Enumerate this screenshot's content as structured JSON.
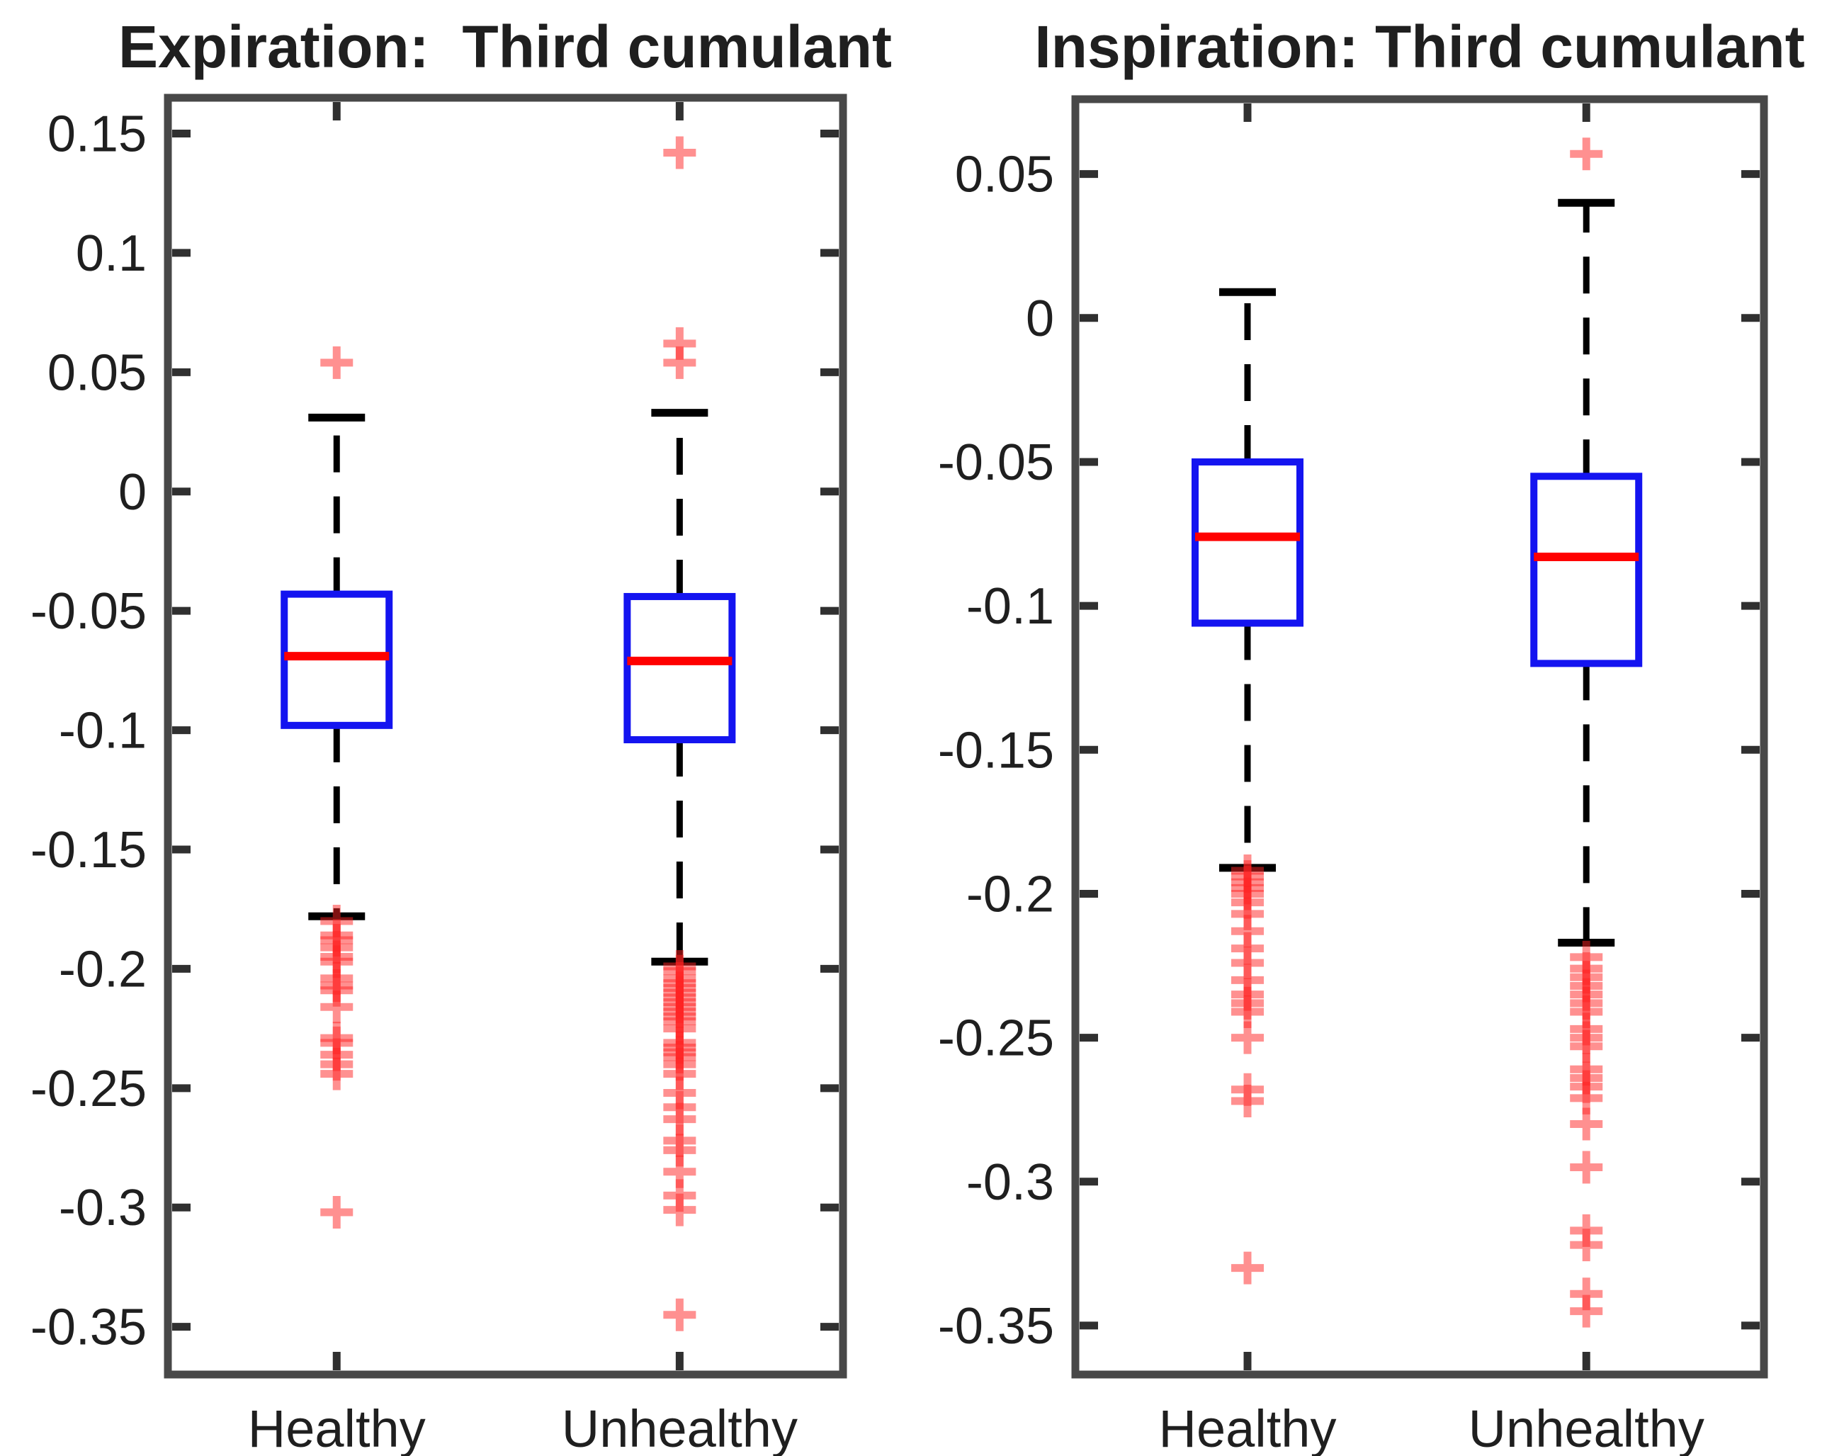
{
  "figure": {
    "background": "#ffffff"
  },
  "colors": {
    "box_stroke": "#1414f0",
    "median": "#ff0000",
    "whisker": "#000000",
    "whisker_cap": "#000000",
    "outlier": "#ff2121",
    "outlier_opacity": 0.5,
    "axis_frame": "#484848",
    "tick": "#303030",
    "text": "#1f1f1f"
  },
  "chart_data": [
    {
      "type": "box",
      "title": "Expiration:  Third cumulant",
      "categories": [
        "Healthy",
        "Unhealthy"
      ],
      "ylim": [
        -0.37,
        0.165
      ],
      "yticks": [
        0.15,
        0.1,
        0.05,
        0,
        -0.05,
        -0.1,
        -0.15,
        -0.2,
        -0.25,
        -0.3,
        -0.35
      ],
      "grid": false,
      "boxes": [
        {
          "category": "Healthy",
          "whisker_low": -0.178,
          "q1": -0.098,
          "median": -0.069,
          "q3": -0.043,
          "whisker_high": 0.031,
          "outliers_high": [
            0.054
          ],
          "outliers_low": [
            -0.18,
            -0.186,
            -0.188,
            -0.191,
            -0.195,
            -0.197,
            -0.204,
            -0.207,
            -0.209,
            -0.216,
            -0.229,
            -0.231,
            -0.236,
            -0.24,
            -0.244,
            -0.302
          ]
        },
        {
          "category": "Unhealthy",
          "whisker_low": -0.197,
          "q1": -0.104,
          "median": -0.071,
          "q3": -0.044,
          "whisker_high": 0.033,
          "outliers_high": [
            0.142,
            0.062,
            0.054
          ],
          "outliers_low": [
            -0.199,
            -0.201,
            -0.204,
            -0.206,
            -0.208,
            -0.21,
            -0.212,
            -0.214,
            -0.216,
            -0.218,
            -0.22,
            -0.222,
            -0.225,
            -0.231,
            -0.233,
            -0.235,
            -0.237,
            -0.24,
            -0.244,
            -0.252,
            -0.258,
            -0.263,
            -0.272,
            -0.276,
            -0.285,
            -0.295,
            -0.301,
            -0.345
          ]
        }
      ]
    },
    {
      "type": "box",
      "title": "Inspiration: Third cumulant",
      "categories": [
        "Healthy",
        "Unhealthy"
      ],
      "ylim": [
        -0.367,
        0.076
      ],
      "yticks": [
        0.05,
        0,
        -0.05,
        -0.1,
        -0.15,
        -0.2,
        -0.25,
        -0.3,
        -0.35
      ],
      "grid": false,
      "boxes": [
        {
          "category": "Healthy",
          "whisker_low": -0.191,
          "q1": -0.106,
          "median": -0.076,
          "q3": -0.05,
          "whisker_high": 0.009,
          "outliers_high": [],
          "outliers_low": [
            -0.192,
            -0.194,
            -0.196,
            -0.198,
            -0.2,
            -0.203,
            -0.207,
            -0.213,
            -0.219,
            -0.224,
            -0.23,
            -0.235,
            -0.238,
            -0.241,
            -0.25,
            -0.268,
            -0.272,
            -0.33
          ]
        },
        {
          "category": "Unhealthy",
          "whisker_low": -0.217,
          "q1": -0.12,
          "median": -0.083,
          "q3": -0.055,
          "whisker_high": 0.04,
          "outliers_high": [
            0.057
          ],
          "outliers_low": [
            -0.222,
            -0.226,
            -0.229,
            -0.232,
            -0.235,
            -0.238,
            -0.241,
            -0.247,
            -0.25,
            -0.253,
            -0.261,
            -0.264,
            -0.267,
            -0.271,
            -0.28,
            -0.295,
            -0.317,
            -0.322,
            -0.339,
            -0.345
          ]
        }
      ]
    }
  ]
}
